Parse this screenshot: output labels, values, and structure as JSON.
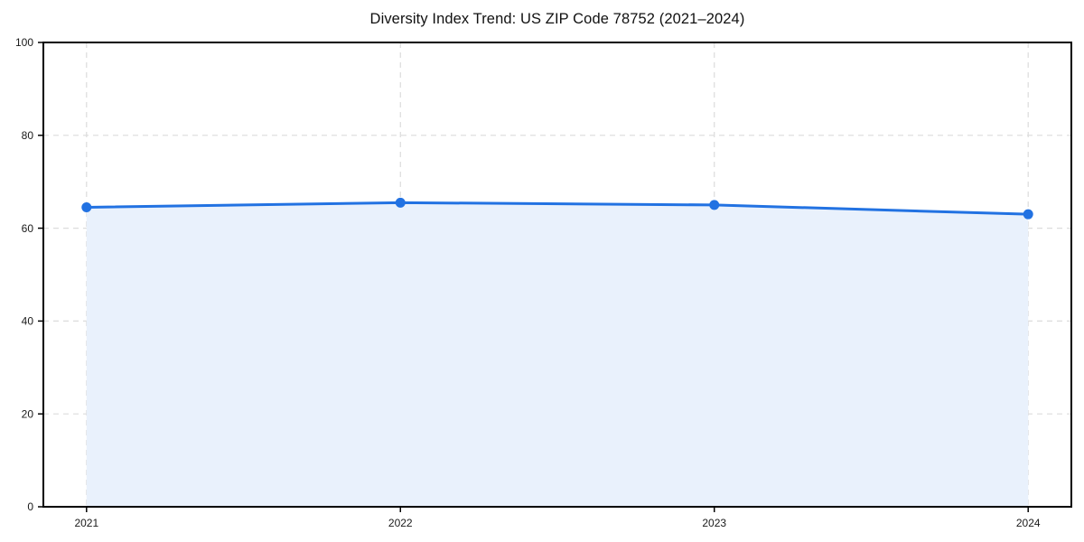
{
  "chart_data": {
    "type": "area",
    "title": "Diversity Index Trend: US ZIP Code 78752 (2021–2024)",
    "series_name": "Diversity Index",
    "x": [
      "2021",
      "2022",
      "2023",
      "2024"
    ],
    "values": [
      64.5,
      65.5,
      65.0,
      63.0
    ],
    "xlabel": "",
    "ylabel": "",
    "ylim": [
      0,
      100
    ],
    "yticks": [
      0,
      20,
      40,
      60,
      80,
      100
    ],
    "grid": true,
    "grid_style": "dashed",
    "legend_position": "none",
    "colors": {
      "line": "#2272e2",
      "marker": "#2272e2",
      "fill": "#e9f1fc",
      "grid": "#dcdcdc",
      "axis_border": "#000000",
      "tick_text": "#1a1a1a",
      "title_text": "#111111",
      "background": "#ffffff"
    }
  }
}
